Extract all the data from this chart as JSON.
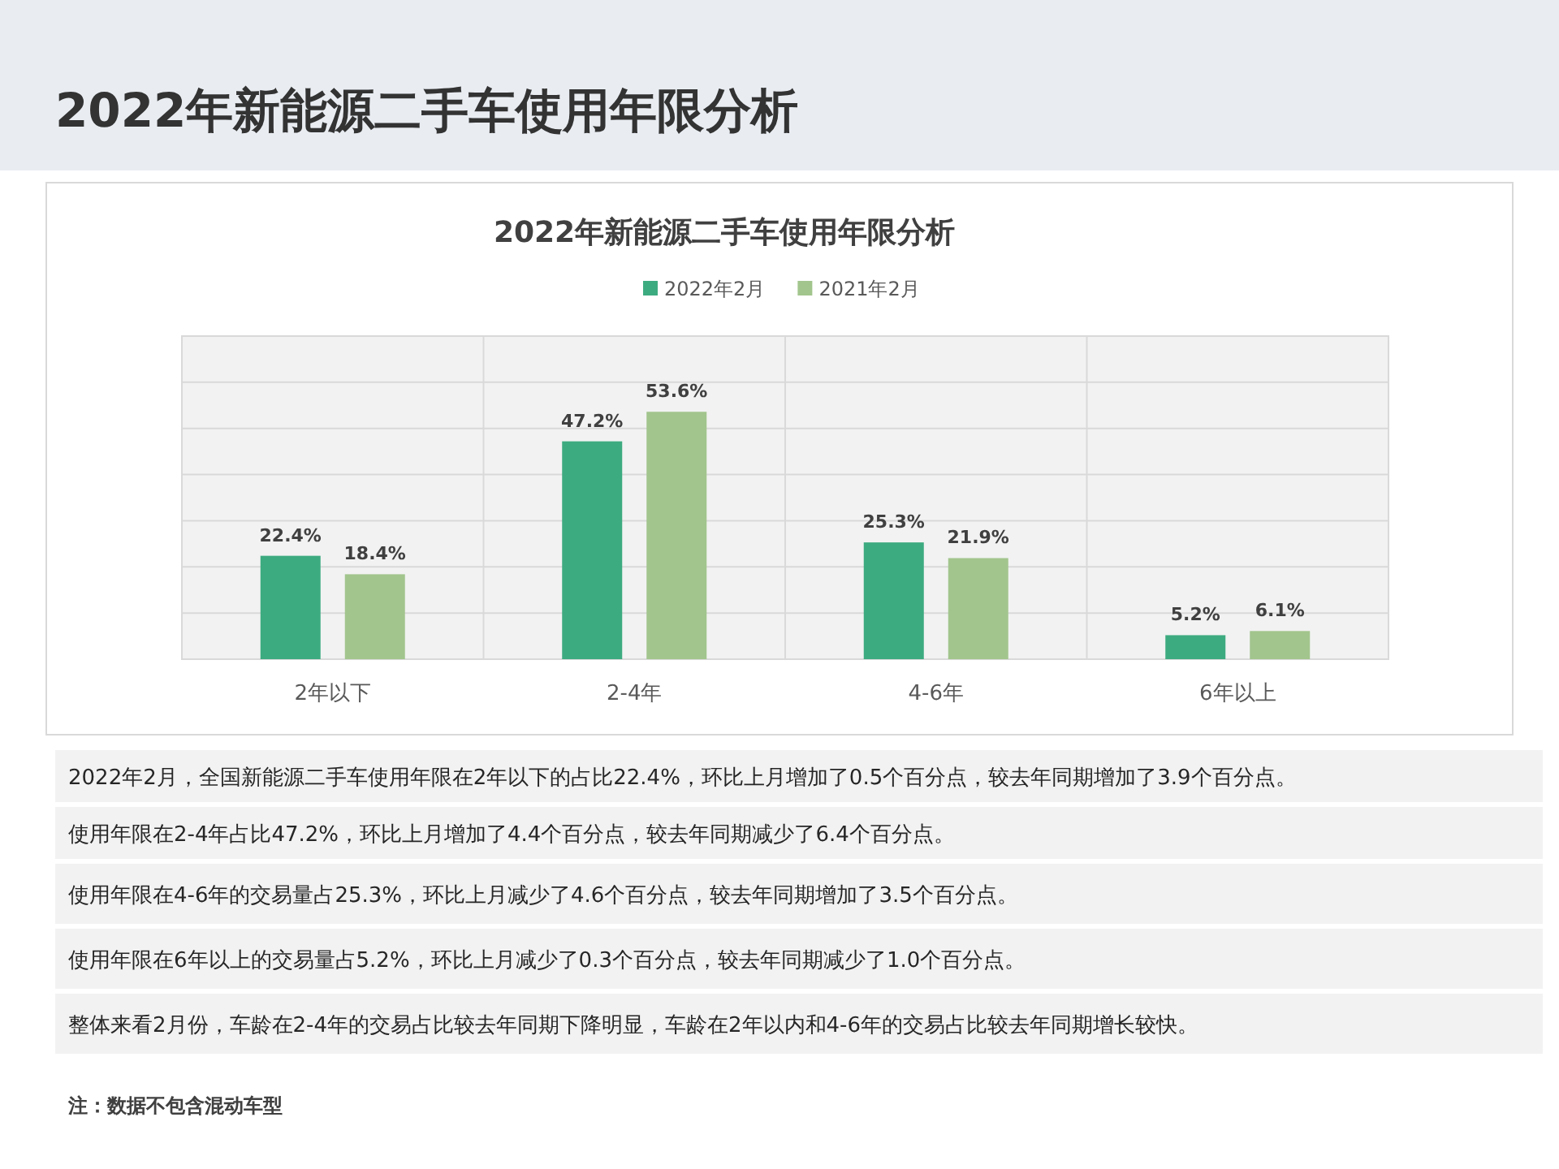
{
  "chart_data": {
    "type": "bar",
    "title": "2022年新能源二手车使用年限分析",
    "categories": [
      "2年以下",
      "2-4年",
      "4-6年",
      "6年以上"
    ],
    "series": [
      {
        "name": "2022年2月",
        "color": "#3dab80",
        "values": [
          22.4,
          47.2,
          25.3,
          5.2
        ],
        "value_labels": [
          "22.4%",
          "47.2%",
          "25.3%",
          "5.2%"
        ]
      },
      {
        "name": "2021年2月",
        "color": "#a2c58d",
        "values": [
          18.4,
          53.6,
          21.9,
          6.1
        ],
        "value_labels": [
          "18.4%",
          "53.6%",
          "21.9%",
          "6.1%"
        ]
      }
    ],
    "ylim": [
      0,
      70
    ],
    "yticks": [
      0,
      10,
      20,
      30,
      40,
      50,
      60,
      70
    ],
    "grid": "y",
    "legend": "top",
    "tick_labels": "x",
    "annotations": [
      "2022年新能源二手车使用年限分析",
      "2022年2月，全国新能源二手车使用年限在2年以下的占比22.4%，环比上月增加了0.5个百分点，较去年同期增加了3.9个百分点。",
      "使用年限在2-4年占比47.2%，环比上月增加了4.4个百分点，较去年同期减少了6.4个百分点。",
      "使用年限在4-6年的交易量占25.3%，环比上月减少了4.6个百分点，较去年同期增加了3.5个百分点。",
      "使用年限在6年以上的交易量占5.2%，环比上月减少了0.3个百分点，较去年同期减少了1.0个百分点。",
      "整体来看2月份，车龄在2-4年的交易占比较去年同期下降明显，车龄在2年以内和4-6年的交易占比较去年同期增长较快。",
      "注：数据不包含混动车型"
    ]
  }
}
